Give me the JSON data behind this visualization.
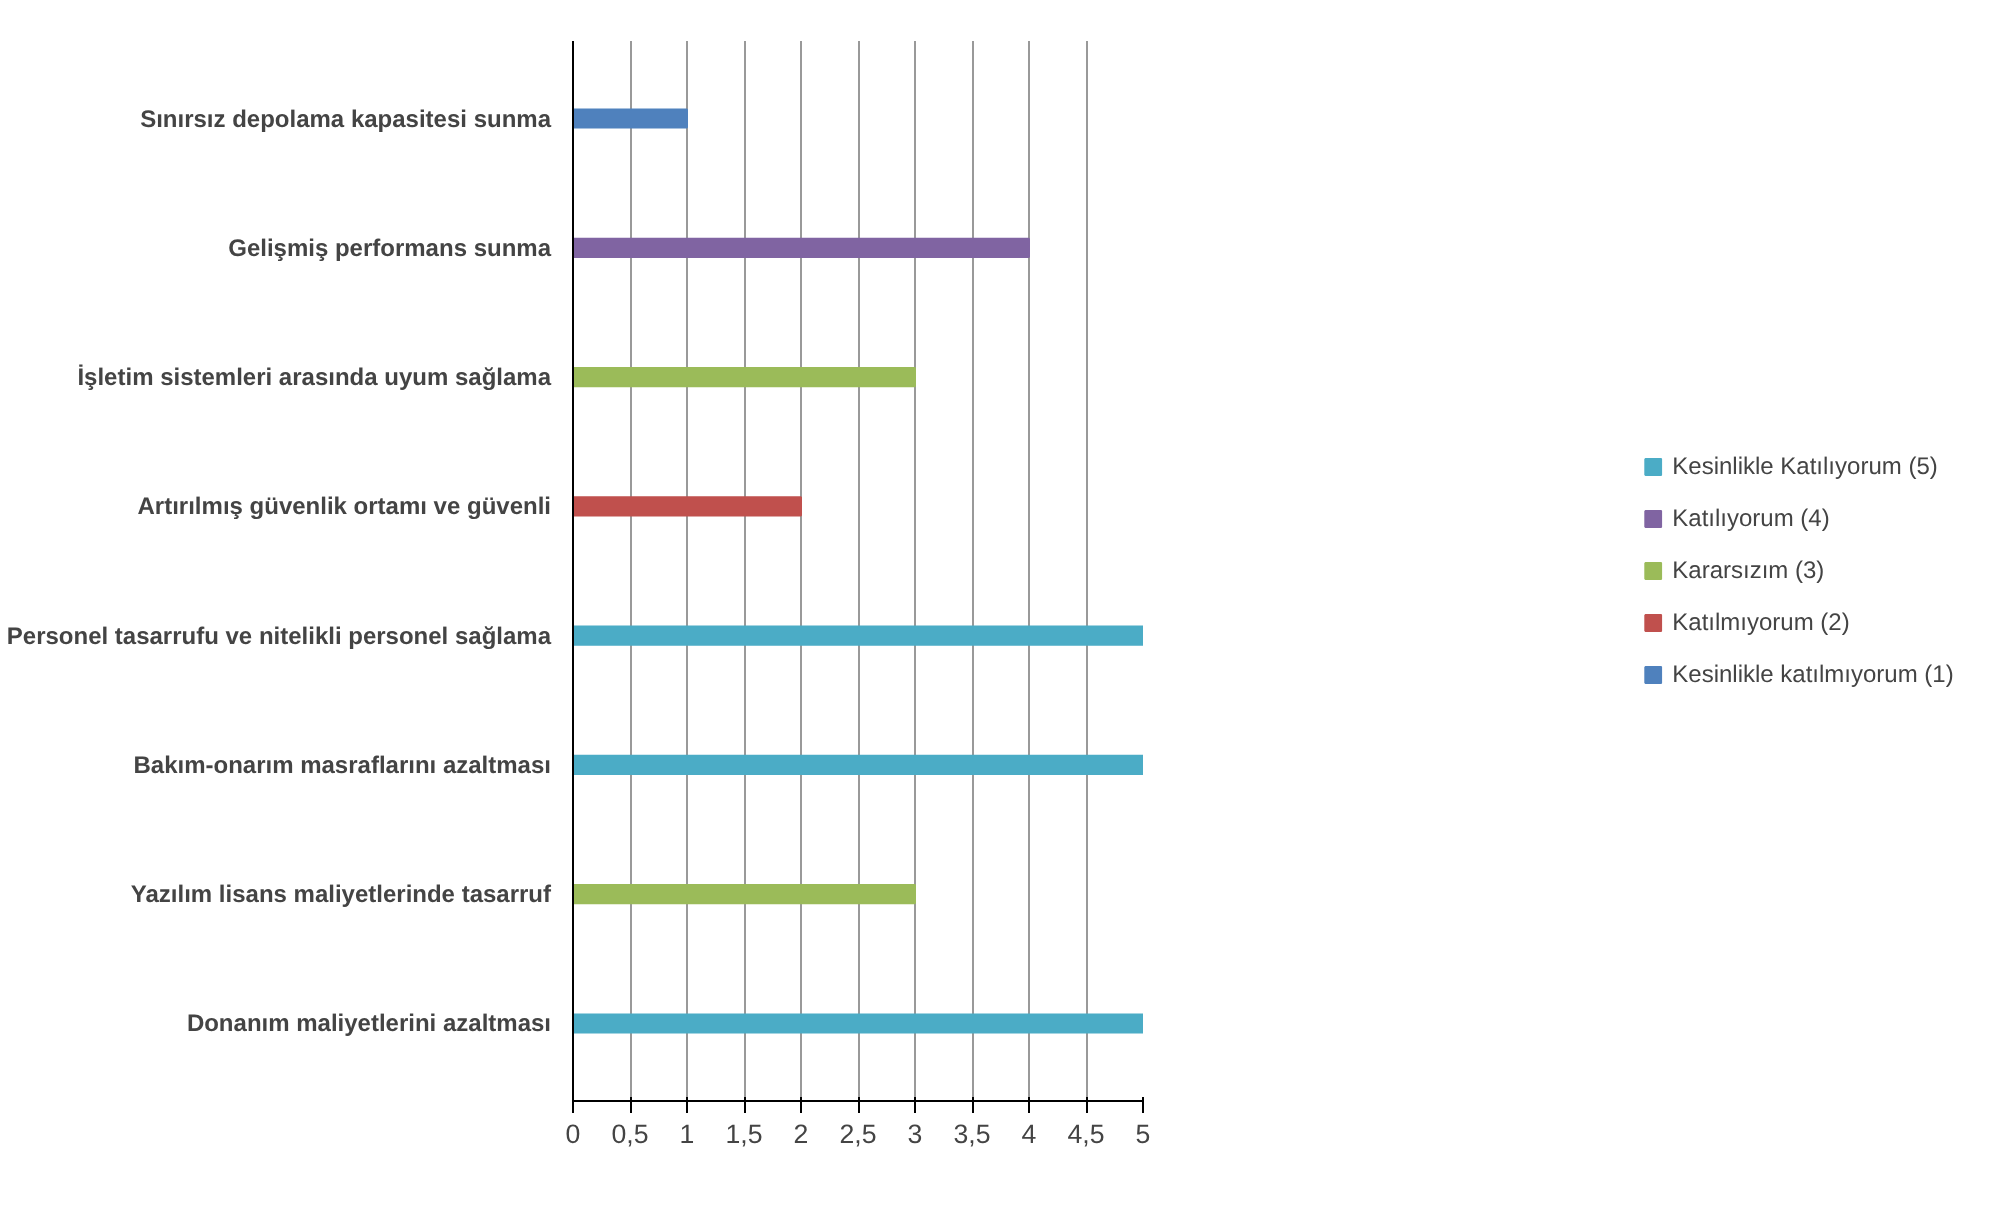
{
  "chart_data": {
    "type": "bar",
    "orientation": "horizontal",
    "categories": [
      "Sınırsız depolama kapasitesi sunma",
      "Gelişmiş performans sunma",
      "İşletim sistemleri arasında uyum sağlama",
      "Artırılmış güvenlik ortamı ve güvenli",
      "Personel tasarrufu ve nitelikli personel sağlama",
      "Bakım-onarım masraflarını azaltması",
      "Yazılım lisans maliyetlerinde tasarruf",
      "Donanım maliyetlerini azaltması"
    ],
    "series": [
      {
        "name": "Kesinlikle Katılıyorum (5)",
        "color": "#4bacc6",
        "values": [
          null,
          null,
          null,
          null,
          5,
          5,
          null,
          5
        ]
      },
      {
        "name": "Katılıyorum (4)",
        "color": "#8064a2",
        "values": [
          null,
          4,
          null,
          null,
          null,
          null,
          null,
          null
        ]
      },
      {
        "name": "Kararsızım (3)",
        "color": "#9bbb59",
        "values": [
          null,
          null,
          3,
          null,
          null,
          null,
          3,
          null
        ]
      },
      {
        "name": "Katılmıyorum (2)",
        "color": "#c0504d",
        "values": [
          null,
          null,
          null,
          2,
          null,
          null,
          null,
          null
        ]
      },
      {
        "name": "Kesinlikle katılmıyorum (1)",
        "color": "#4f81bd",
        "values": [
          1,
          null,
          null,
          null,
          null,
          null,
          null,
          null
        ]
      }
    ],
    "xlim": [
      0,
      5
    ],
    "xticks": [
      0,
      {
        "value": 0.5,
        "label": "0,5"
      },
      1,
      {
        "value": 1.5,
        "label": "1,5"
      },
      2,
      {
        "value": 2.5,
        "label": "2,5"
      },
      3,
      {
        "value": 3.5,
        "label": "3,5"
      },
      4,
      {
        "value": 4.5,
        "label": "4,5"
      },
      5
    ],
    "grid": "x",
    "legend": "right"
  }
}
